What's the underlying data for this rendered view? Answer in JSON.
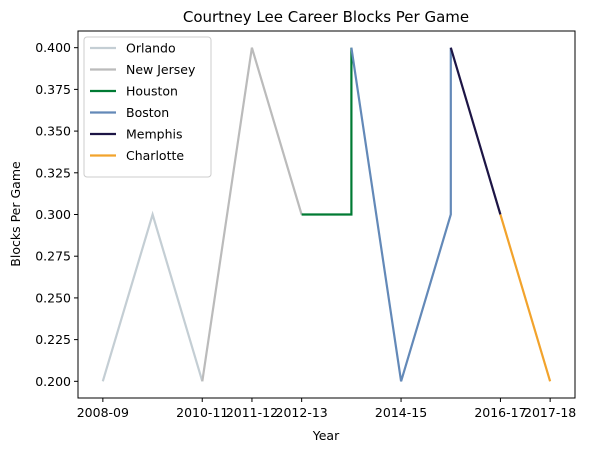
{
  "chart_data": {
    "type": "line",
    "title": "Courtney Lee Career Blocks Per Game",
    "xlabel": "Year",
    "ylabel": "Blocks Per Game",
    "x_tick_labels": [
      "2008-09",
      "2010-11",
      "2011-12",
      "2012-13",
      "2014-15",
      "2016-17",
      "2017-18"
    ],
    "y_tick_labels": [
      "0.200",
      "0.225",
      "0.250",
      "0.275",
      "0.300",
      "0.325",
      "0.350",
      "0.375",
      "0.400"
    ],
    "y_ticks": [
      0.2,
      0.225,
      0.25,
      0.275,
      0.3,
      0.325,
      0.35,
      0.375,
      0.4
    ],
    "ylim": [
      0.19,
      0.41
    ],
    "grid": false,
    "legend_position": "top-left",
    "series": [
      {
        "name": "Orlando",
        "color": "#c4ced4",
        "x": [
          "2008-09",
          "2009-10",
          "2010-11"
        ],
        "y": [
          0.2,
          0.3,
          0.2
        ]
      },
      {
        "name": "New Jersey",
        "color": "#bbbbbb",
        "x": [
          "2010-11",
          "2011-12",
          "2012-13"
        ],
        "y": [
          0.2,
          0.4,
          0.3
        ]
      },
      {
        "name": "Houston",
        "color": "#007a33",
        "x": [
          "2012-13",
          "2013-14",
          "2013-14"
        ],
        "y": [
          0.3,
          0.3,
          0.4
        ]
      },
      {
        "name": "Boston",
        "color": "#6389b8",
        "x": [
          "2013-14",
          "2014-15",
          "2015-16",
          "2015-16"
        ],
        "y": [
          0.4,
          0.2,
          0.3,
          0.4
        ]
      },
      {
        "name": "Memphis",
        "color": "#1d1545",
        "x": [
          "2015-16",
          "2016-17"
        ],
        "y": [
          0.4,
          0.3
        ]
      },
      {
        "name": "Charlotte",
        "color": "#f2a32c",
        "x": [
          "2016-17",
          "2017-18"
        ],
        "y": [
          0.3,
          0.2
        ]
      }
    ]
  }
}
